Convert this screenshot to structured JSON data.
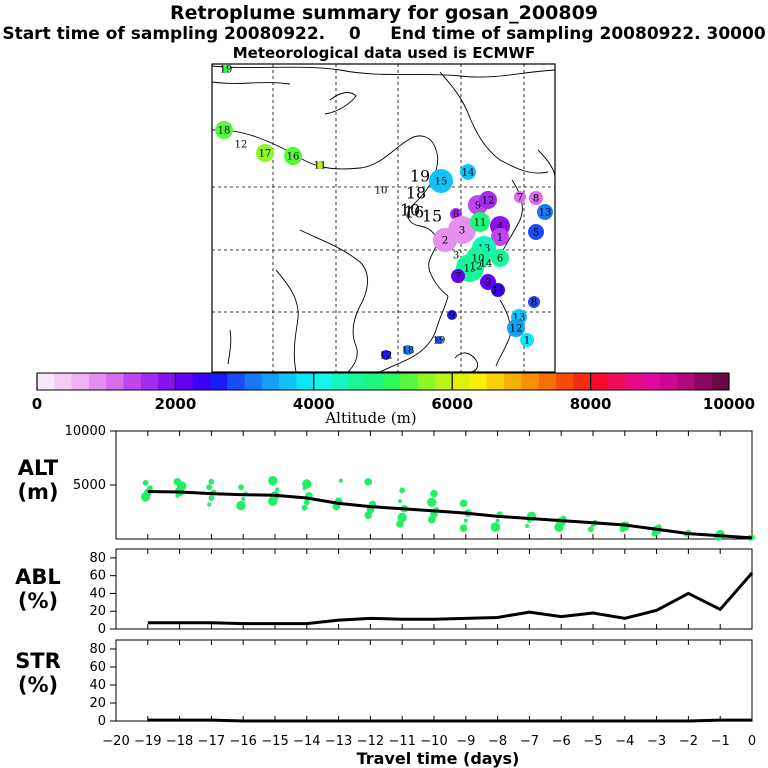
{
  "header": {
    "title": "Retroplume summary for gosan_200809",
    "subtitle_start_label": "Start time of sampling",
    "subtitle_start_value": "20080922.",
    "subtitle_start_hms": "0",
    "subtitle_end_label": "End time of sampling",
    "subtitle_end_value": "20080922. 30000",
    "met_label": "Meteorological data used is ECMWF"
  },
  "colorbar": {
    "label": "Altitude (m)",
    "ticks": [
      "0",
      "2000",
      "4000",
      "6000",
      "8000",
      "10000"
    ],
    "colors": [
      "#f8e6fb",
      "#f4ccf6",
      "#eeb1f2",
      "#e590ee",
      "#d86cec",
      "#c045ee",
      "#a52aef",
      "#8a10f0",
      "#6600f0",
      "#3a00f5",
      "#1c1af7",
      "#1a4cf7",
      "#1a78f8",
      "#14a0f8",
      "#10c4f9",
      "#0ce6fb",
      "#10f6e8",
      "#14f6c0",
      "#18f69a",
      "#1cf67c",
      "#2cf85c",
      "#58f83c",
      "#8cf828",
      "#b8f414",
      "#def208",
      "#f8f004",
      "#f8d004",
      "#f8b004",
      "#f89004",
      "#f86e04",
      "#f84c04",
      "#f82a10",
      "#f80c2a",
      "#f00a58",
      "#e80a80",
      "#e008a0",
      "#cc0890",
      "#b00878",
      "#8c0860",
      "#6a0848"
    ]
  },
  "map_labels": [
    "19",
    "18",
    "12",
    "17",
    "16",
    "11",
    "10",
    "19",
    "15",
    "14",
    "18",
    "10",
    "16",
    "15",
    "6",
    "9",
    "12",
    "13",
    "8",
    "7",
    "4",
    "3",
    "11",
    "2",
    "1",
    "19",
    "13",
    "10",
    "5",
    "3",
    "6",
    "14",
    "7",
    "9",
    "12",
    "11",
    "8",
    "9",
    "13",
    "12",
    "1"
  ],
  "chart_data": [
    {
      "type": "scatter",
      "panel": "ALT",
      "ylabel": "ALT",
      "yunit": "(m)",
      "xlabel": "Travel time (days)",
      "xlim": [
        -20,
        0
      ],
      "ylim": [
        0,
        10000
      ],
      "yticks": [
        5000,
        10000
      ],
      "xticks": [
        -20,
        -19,
        -18,
        -17,
        -16,
        -15,
        -14,
        -13,
        -12,
        -11,
        -10,
        -9,
        -8,
        -7,
        -6,
        -5,
        -4,
        -3,
        -2,
        -1,
        0
      ],
      "mean_line": {
        "x": [
          -19,
          -18,
          -17,
          -16,
          -15,
          -14,
          -13,
          -12,
          -11,
          -10,
          -9,
          -8,
          -7,
          -6,
          -5,
          -4,
          -3,
          -2,
          -1,
          0
        ],
        "y": [
          4400,
          4350,
          4200,
          4100,
          4050,
          3800,
          3300,
          3000,
          2800,
          2600,
          2400,
          2100,
          1900,
          1700,
          1500,
          1300,
          900,
          500,
          300,
          100
        ]
      },
      "cluster_points": [
        {
          "x": -19,
          "y": [
            3900,
            4300,
            4700,
            5200
          ]
        },
        {
          "x": -18,
          "y": [
            4000,
            4400,
            4900,
            5300
          ]
        },
        {
          "x": -17,
          "y": [
            3200,
            3800,
            4300,
            4800,
            5300
          ]
        },
        {
          "x": -16,
          "y": [
            3100,
            3700,
            4200,
            4800
          ]
        },
        {
          "x": -15,
          "y": [
            3500,
            4000,
            4600,
            5400
          ]
        },
        {
          "x": -14,
          "y": [
            2900,
            3400,
            4000,
            4700,
            5100
          ]
        },
        {
          "x": -13,
          "y": [
            3000,
            3500,
            5400
          ]
        },
        {
          "x": -12,
          "y": [
            2200,
            2700,
            3200,
            5300
          ]
        },
        {
          "x": -11,
          "y": [
            1400,
            2000,
            2800,
            3500,
            4500
          ]
        },
        {
          "x": -10,
          "y": [
            1800,
            2300,
            2700,
            3400,
            4200
          ]
        },
        {
          "x": -9,
          "y": [
            1000,
            1700,
            2400,
            3300
          ]
        },
        {
          "x": -8,
          "y": [
            1100,
            1700,
            2300
          ]
        },
        {
          "x": -7,
          "y": [
            1200,
            1700,
            2100
          ]
        },
        {
          "x": -6,
          "y": [
            1100,
            1600,
            1900
          ]
        },
        {
          "x": -5,
          "y": [
            900,
            1300,
            1500
          ]
        },
        {
          "x": -4,
          "y": [
            900,
            1200,
            1400
          ]
        },
        {
          "x": -3,
          "y": [
            500,
            800,
            1100
          ]
        },
        {
          "x": -2,
          "y": [
            400,
            600
          ]
        },
        {
          "x": -1,
          "y": [
            200,
            400
          ]
        },
        {
          "x": 0,
          "y": [
            100,
            150
          ]
        }
      ]
    },
    {
      "type": "line",
      "panel": "ABL",
      "ylabel": "ABL",
      "yunit": "(%)",
      "ylim": [
        0,
        90
      ],
      "yticks": [
        0,
        20,
        40,
        60,
        80
      ],
      "x": [
        -19,
        -18,
        -17,
        -16,
        -15,
        -14,
        -13,
        -12,
        -11,
        -10,
        -9,
        -8,
        -7,
        -6,
        -5,
        -4,
        -3,
        -2,
        -1,
        0
      ],
      "y": [
        7,
        7,
        7,
        6,
        6,
        6,
        10,
        12,
        11,
        11,
        12,
        13,
        19,
        14,
        18,
        12,
        21,
        40,
        22,
        63
      ]
    },
    {
      "type": "line",
      "panel": "STR",
      "ylabel": "STR",
      "yunit": "(%)",
      "ylim": [
        0,
        90
      ],
      "yticks": [
        0,
        20,
        40,
        60,
        80
      ],
      "x": [
        -19,
        -18,
        -17,
        -16,
        -15,
        -14,
        -13,
        -12,
        -11,
        -10,
        -9,
        -8,
        -7,
        -6,
        -5,
        -4,
        -3,
        -2,
        -1,
        0
      ],
      "y": [
        1,
        1,
        1,
        0,
        0,
        0,
        0,
        0,
        0,
        0,
        0,
        0,
        0,
        0,
        0,
        0,
        0,
        0,
        1,
        1
      ]
    }
  ]
}
